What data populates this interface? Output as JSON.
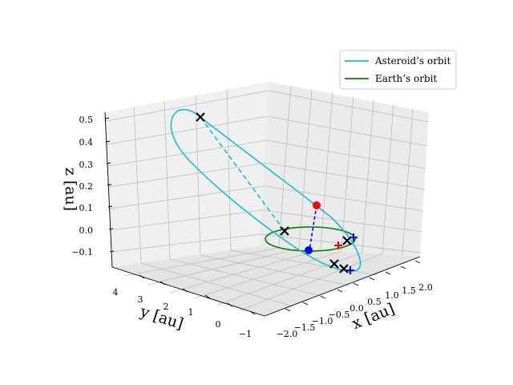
{
  "chart_data": {
    "type": "line3d",
    "xlabel": "x [au]",
    "ylabel": "y [au]",
    "zlabel": "z [au]",
    "xlim": [
      -2.0,
      2.0
    ],
    "ylim": [
      -1,
      4
    ],
    "zlim": [
      -0.1,
      0.5
    ],
    "x_ticks": [
      "−2.0",
      "−1.5",
      "−1.0",
      "−0.5",
      "0.0",
      "0.5",
      "1.0",
      "1.5",
      "2.0"
    ],
    "y_ticks": [
      "−1",
      "0",
      "1",
      "2",
      "3",
      "4"
    ],
    "z_ticks": [
      "−0.1",
      "0.0",
      "0.1",
      "0.2",
      "0.3",
      "0.4",
      "0.5"
    ],
    "grid": true,
    "legend": {
      "position": "top-right",
      "entries": [
        "Asteroid’s orbit",
        "Earth’s orbit"
      ]
    },
    "series": [
      {
        "name": "Asteroid’s orbit",
        "color": "#17becf",
        "style": "solid",
        "kind": "ellipse-orbit"
      },
      {
        "name": "Earth’s orbit",
        "color": "#008000",
        "style": "solid",
        "kind": "circular-orbit"
      }
    ],
    "markers": [
      {
        "kind": "cross",
        "color": "#000000",
        "count": 5
      },
      {
        "kind": "plus",
        "color": "#0000ff",
        "count": 2
      },
      {
        "kind": "plus",
        "color": "#ff0000",
        "count": 1
      },
      {
        "kind": "dot",
        "color": "#ff0000",
        "count": 1
      },
      {
        "kind": "dot",
        "color": "#0000ff",
        "count": 1
      }
    ]
  }
}
